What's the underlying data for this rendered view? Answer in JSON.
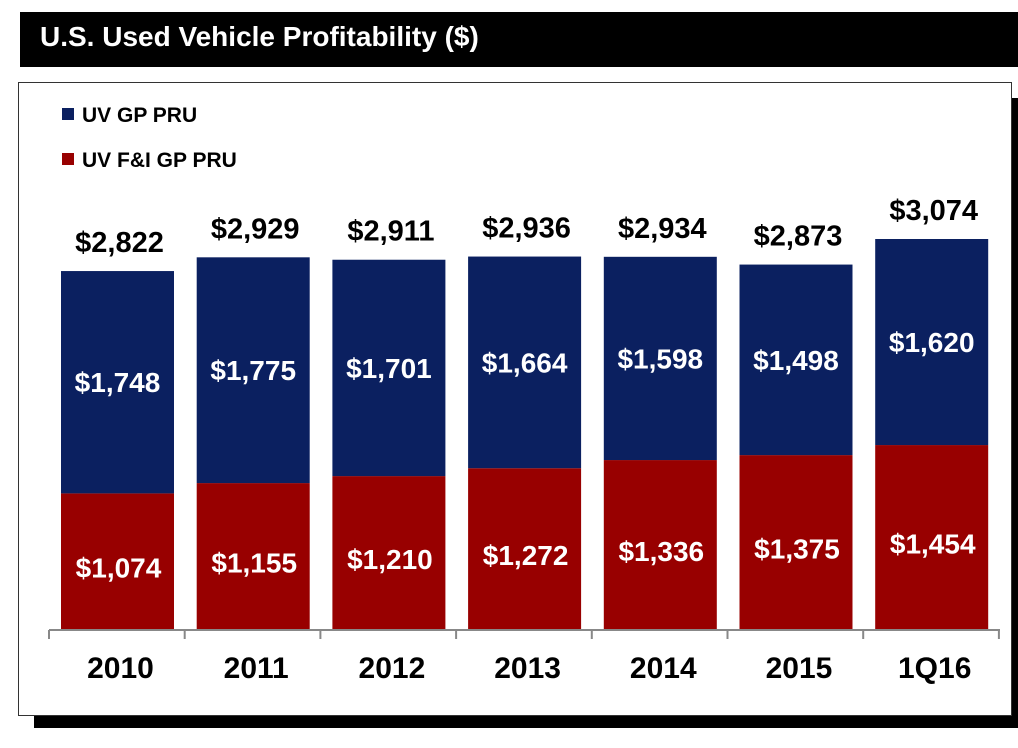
{
  "title": "U.S. Used Vehicle Profitability ($)",
  "colors": {
    "uv_gp": "#0b2060",
    "uv_fi": "#980000",
    "title_bg": "#000000"
  },
  "chart_data": {
    "type": "bar",
    "stacked": true,
    "categories": [
      "2010",
      "2011",
      "2012",
      "2013",
      "2014",
      "2015",
      "1Q16"
    ],
    "series": [
      {
        "name": "UV F&I GP PRU",
        "values": [
          1074,
          1155,
          1210,
          1272,
          1336,
          1375,
          1454
        ],
        "labels": [
          "$1,074",
          "$1,155",
          "$1,210",
          "$1,272",
          "$1,336",
          "$1,375",
          "$1,454"
        ]
      },
      {
        "name": "UV GP PRU",
        "values": [
          1748,
          1775,
          1701,
          1664,
          1598,
          1498,
          1620
        ],
        "labels": [
          "$1,748",
          "$1,775",
          "$1,701",
          "$1,664",
          "$1,598",
          "$1,498",
          "$1,620"
        ]
      }
    ],
    "totals": [
      2822,
      2929,
      2911,
      2936,
      2934,
      2873,
      3074
    ],
    "total_labels": [
      "$2,822",
      "$2,929",
      "$2,911",
      "$2,936",
      "$2,934",
      "$2,873",
      "$3,074"
    ],
    "legend": [
      "UV GP PRU",
      "UV F&I GP PRU"
    ],
    "legend_position": "top-left",
    "ylim": [
      0,
      3074
    ],
    "grid": false
  }
}
